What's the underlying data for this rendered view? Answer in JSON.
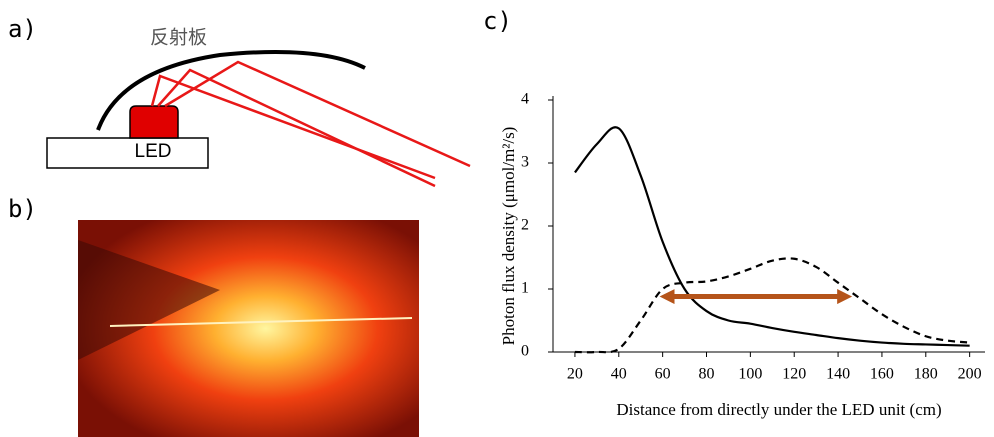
{
  "panels": {
    "a": "a)",
    "b": "b)",
    "c": "c)"
  },
  "diagram": {
    "reflector_label": "反射板",
    "led_label": "LED"
  },
  "chart_data": {
    "type": "line",
    "xlabel": "Distance from directly under the LED unit (cm)",
    "ylabel": "Photon flux density (μmol/m²/s)",
    "x": [
      20,
      30,
      40,
      50,
      60,
      70,
      80,
      90,
      100,
      110,
      120,
      130,
      140,
      150,
      160,
      170,
      180,
      190,
      200
    ],
    "series": [
      {
        "color": "#000000",
        "dashed": false,
        "values": [
          2.85,
          3.3,
          3.55,
          2.8,
          1.75,
          1.0,
          0.65,
          0.5,
          0.45,
          0.38,
          0.32,
          0.27,
          0.22,
          0.18,
          0.15,
          0.13,
          0.12,
          0.11,
          0.1
        ]
      },
      {
        "color": "#000000",
        "dashed": true,
        "values": [
          0,
          0,
          0.05,
          0.5,
          1.0,
          1.1,
          1.12,
          1.2,
          1.32,
          1.45,
          1.48,
          1.35,
          1.1,
          0.85,
          0.6,
          0.4,
          0.25,
          0.18,
          0.15
        ]
      }
    ],
    "arrow": {
      "x": [
        62,
        143
      ],
      "y": 0.88,
      "color": "#b5541a"
    },
    "xlim": [
      10,
      207
    ],
    "ylim": [
      0,
      4
    ],
    "xticks": [
      20,
      40,
      60,
      80,
      100,
      120,
      140,
      160,
      180,
      200
    ],
    "yticks": [
      0,
      1,
      2,
      3,
      4
    ]
  }
}
